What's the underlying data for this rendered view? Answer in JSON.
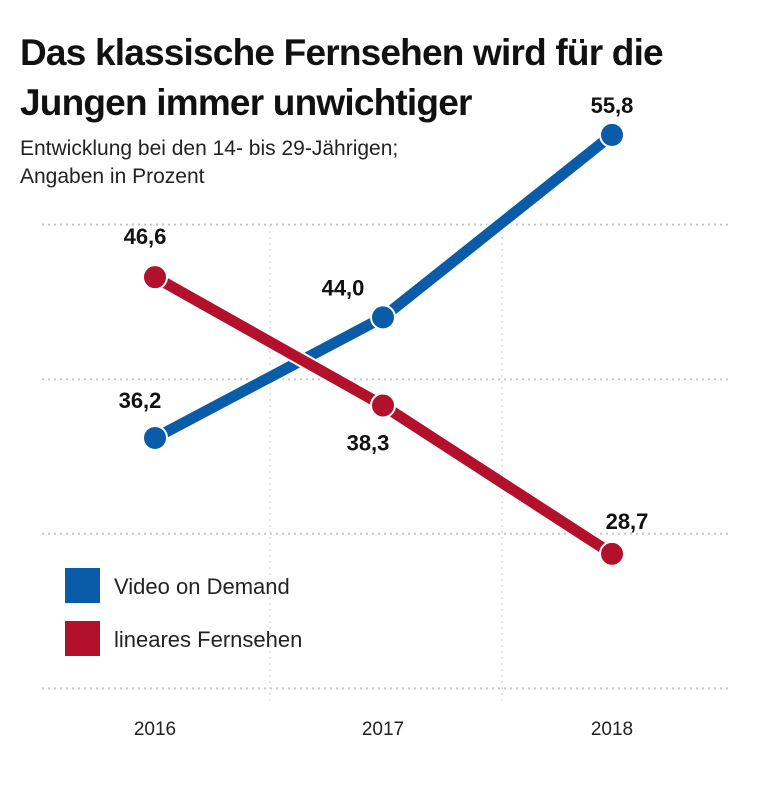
{
  "chart_data": {
    "type": "line",
    "title": "Das klassische Fernsehen wird für die Jungen immer unwichtiger",
    "subtitle_lines": [
      "Entwicklung bei den 14- bis 29-Jährigen;",
      "Angaben in Prozent"
    ],
    "categories": [
      "2016",
      "2017",
      "2018"
    ],
    "series": [
      {
        "name": "Video on Demand",
        "values": [
          36.2,
          44.0,
          55.8
        ],
        "labels": [
          "36,2",
          "44,0",
          "55,8"
        ],
        "color": "#0b5ca8"
      },
      {
        "name": "lineares Fernsehen",
        "values": [
          46.6,
          38.3,
          28.7
        ],
        "labels": [
          "46,6",
          "38,3",
          "28,7"
        ],
        "color": "#b3102c"
      }
    ],
    "ylim": [
      20,
      56
    ],
    "grid_y": [
      20,
      30,
      40,
      50
    ],
    "grid": true,
    "legend_position": "bottom-left"
  }
}
